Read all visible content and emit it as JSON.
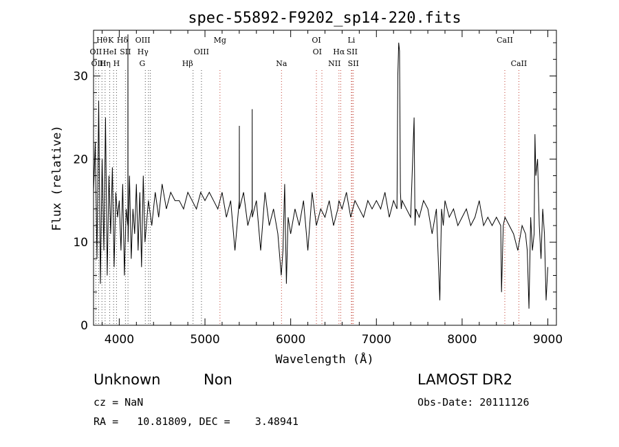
{
  "chart_data": {
    "type": "line",
    "title": "spec-55892-F9202_sp14-220.fits",
    "xlabel": "Wavelength (Å)",
    "ylabel": "Flux (relative)",
    "xlim": [
      3700,
      9100
    ],
    "ylim": [
      0,
      35.5
    ],
    "xticks": [
      4000,
      5000,
      6000,
      7000,
      8000,
      9000
    ],
    "yticks": [
      0,
      10,
      20,
      30
    ],
    "grid": false,
    "line_color": "#000000",
    "marker_color": "#c0392b",
    "series": [
      {
        "x": [
          3700,
          3720,
          3740,
          3760,
          3780,
          3800,
          3820,
          3840,
          3860,
          3880,
          3900,
          3920,
          3940,
          3960,
          3980,
          4000,
          4020,
          4040,
          4060,
          4080,
          4100,
          4101,
          4102,
          4103,
          4120,
          4140,
          4160,
          4180,
          4200,
          4220,
          4240,
          4260,
          4280,
          4300,
          4340,
          4380,
          4420,
          4460,
          4500,
          4550,
          4600,
          4650,
          4700,
          4750,
          4800,
          4850,
          4900,
          4950,
          5000,
          5050,
          5100,
          5150,
          5200,
          5250,
          5300,
          5350,
          5400,
          5401,
          5402,
          5450,
          5500,
          5550,
          5551,
          5552,
          5600,
          5650,
          5700,
          5750,
          5800,
          5850,
          5890,
          5910,
          5930,
          5950,
          5970,
          6000,
          6050,
          6100,
          6150,
          6200,
          6250,
          6300,
          6350,
          6400,
          6450,
          6500,
          6550,
          6563,
          6600,
          6650,
          6700,
          6750,
          6800,
          6850,
          6900,
          6950,
          7000,
          7050,
          7100,
          7150,
          7200,
          7240,
          7250,
          7260,
          7270,
          7280,
          7290,
          7300,
          7350,
          7400,
          7440,
          7450,
          7460,
          7500,
          7550,
          7600,
          7650,
          7700,
          7740,
          7760,
          7780,
          7800,
          7850,
          7900,
          7950,
          8000,
          8050,
          8100,
          8150,
          8200,
          8250,
          8300,
          8350,
          8400,
          8450,
          8460,
          8480,
          8500,
          8550,
          8600,
          8650,
          8700,
          8740,
          8760,
          8780,
          8800,
          8820,
          8840,
          8850,
          8860,
          8880,
          8900,
          8920,
          8940,
          8960,
          8980,
          9000
        ],
        "values": [
          16,
          22,
          8,
          27,
          5,
          20,
          9,
          25,
          6,
          18,
          11,
          19,
          7,
          16,
          13,
          15,
          9,
          17,
          6,
          14,
          12,
          35,
          13,
          10,
          18,
          8,
          14,
          11,
          17,
          9,
          16,
          7,
          18,
          10,
          15,
          12,
          16,
          13,
          17,
          14,
          16,
          15,
          15,
          14,
          16,
          15,
          14,
          16,
          15,
          16,
          15,
          14,
          16,
          13,
          15,
          9,
          15,
          24,
          14,
          16,
          12,
          14,
          26,
          13,
          15,
          9,
          16,
          12,
          14,
          11,
          6,
          9,
          17,
          5,
          13,
          11,
          14,
          12,
          15,
          9,
          16,
          12,
          14,
          13,
          15,
          12,
          14,
          15,
          14,
          16,
          13,
          15,
          14,
          13,
          15,
          14,
          15,
          14,
          16,
          13,
          15,
          14,
          30,
          34,
          33,
          16,
          14,
          15,
          14,
          13,
          25,
          12,
          14,
          13,
          15,
          14,
          11,
          14,
          3,
          14,
          12,
          15,
          13,
          14,
          12,
          13,
          14,
          12,
          13,
          15,
          12,
          13,
          12,
          13,
          12,
          4,
          12,
          13,
          12,
          11,
          9,
          12,
          11,
          9,
          2,
          13,
          9,
          11,
          23,
          18,
          20,
          12,
          8,
          14,
          11,
          3,
          7
        ]
      }
    ],
    "line_labels": [
      {
        "label": "Hθ",
        "x": 3798,
        "row": 1,
        "ha": "center"
      },
      {
        "label": "K",
        "x": 3934,
        "row": 1,
        "ha": "right"
      },
      {
        "label": "Hδ",
        "x": 4102,
        "row": 1,
        "ha": "right"
      },
      {
        "label": "OIII",
        "x": 4363,
        "row": 1,
        "ha": "right"
      },
      {
        "label": "Mg",
        "x": 5175,
        "row": 1,
        "ha": "center"
      },
      {
        "label": "OI",
        "x": 6300,
        "row": 1,
        "ha": "center"
      },
      {
        "label": "Li",
        "x": 6708,
        "row": 1,
        "ha": "center"
      },
      {
        "label": "CaII",
        "x": 8498,
        "row": 1,
        "ha": "center"
      },
      {
        "label": "OII",
        "x": 3727,
        "row": 2,
        "ha": "center"
      },
      {
        "label": "HeI",
        "x": 3889,
        "row": 2,
        "ha": "center"
      },
      {
        "label": "SII",
        "x": 4072,
        "row": 2,
        "ha": "center"
      },
      {
        "label": "Hγ",
        "x": 4341,
        "row": 2,
        "ha": "right"
      },
      {
        "label": "OIII",
        "x": 4959,
        "row": 2,
        "ha": "center"
      },
      {
        "label": "OI",
        "x": 6364,
        "row": 2,
        "ha": "right"
      },
      {
        "label": "Hα",
        "x": 6563,
        "row": 2,
        "ha": "center"
      },
      {
        "label": "SII",
        "x": 6716,
        "row": 2,
        "ha": "center"
      },
      {
        "label": "OIII",
        "x": 3760,
        "row": 3,
        "ha": "center"
      },
      {
        "label": "Hη",
        "x": 3835,
        "row": 3,
        "ha": "center"
      },
      {
        "label": "H",
        "x": 3968,
        "row": 3,
        "ha": "center"
      },
      {
        "label": "G",
        "x": 4304,
        "row": 3,
        "ha": "right"
      },
      {
        "label": "Hβ",
        "x": 4861,
        "row": 3,
        "ha": "right"
      },
      {
        "label": "Na",
        "x": 5893,
        "row": 3,
        "ha": "center"
      },
      {
        "label": "NII",
        "x": 6584,
        "row": 3,
        "ha": "right"
      },
      {
        "label": "SII",
        "x": 6731,
        "row": 3,
        "ha": "center"
      },
      {
        "label": "CaII",
        "x": 8662,
        "row": 3,
        "ha": "center"
      }
    ],
    "marker_lines_black": [
      3727,
      3760,
      3798,
      3835,
      3889,
      3934,
      3968,
      4072,
      4102,
      4304,
      4341,
      4363,
      4861,
      4959
    ],
    "marker_lines_red": [
      5175,
      5893,
      6300,
      6364,
      6563,
      6584,
      6708,
      6716,
      6731,
      8498,
      8662
    ]
  },
  "info": {
    "class_label": "Unknown",
    "subclass_label": "Non",
    "survey": "LAMOST DR2",
    "cz": "cz = NaN",
    "obs_date": "Obs-Date: 20111126",
    "coords": "RA =   10.81809, DEC =    3.48941"
  }
}
